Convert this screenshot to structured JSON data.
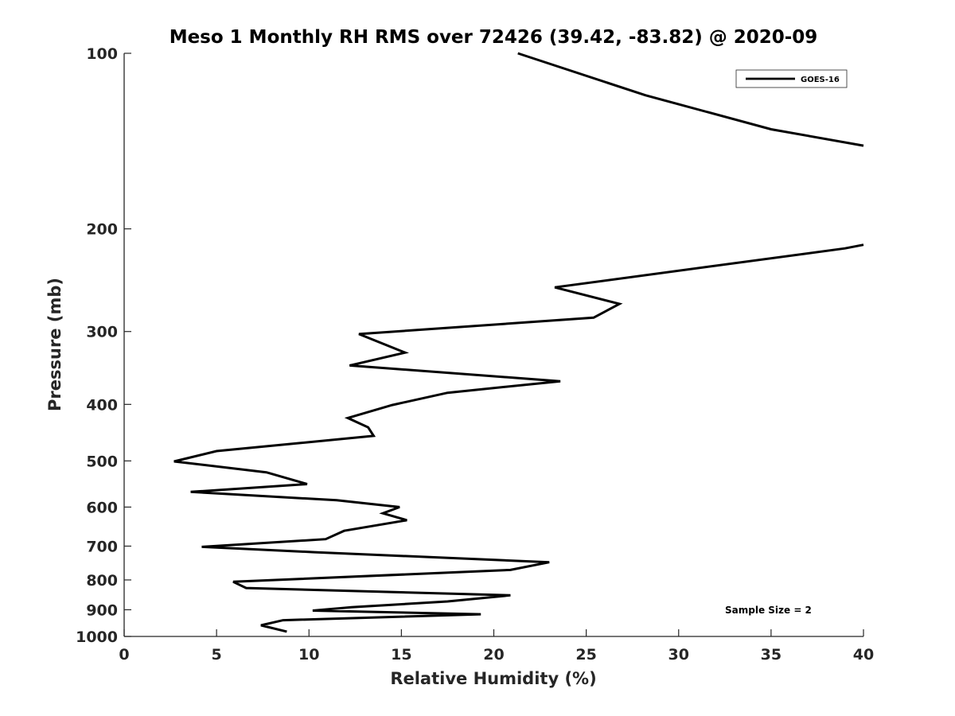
{
  "chart_data": {
    "type": "line",
    "title": "Meso 1 Monthly RH RMS over 72426 (39.42, -83.82) @ 2020-09",
    "xlabel": "Relative Humidity (%)",
    "ylabel": "Pressure (mb)",
    "xlim": [
      0,
      40
    ],
    "ylim": [
      100,
      1000
    ],
    "yscale": "log",
    "y_reversed": true,
    "grid": false,
    "legend_position": "top-right",
    "x_ticks": [
      "0",
      "5",
      "10",
      "15",
      "20",
      "25",
      "30",
      "35",
      "40"
    ],
    "y_ticks": [
      "100",
      "200",
      "300",
      "400",
      "500",
      "600",
      "700",
      "800",
      "900",
      "1000"
    ],
    "series": [
      {
        "name": "GOES-16",
        "color": "#000000",
        "segments": [
          [
            {
              "x": 21.3,
              "y": 100
            },
            {
              "x": 28.2,
              "y": 118
            },
            {
              "x": 35.0,
              "y": 135
            },
            {
              "x": 40.0,
              "y": 144
            }
          ],
          [
            {
              "x": 40.0,
              "y": 213
            },
            {
              "x": 39.0,
              "y": 216
            },
            {
              "x": 23.3,
              "y": 252
            },
            {
              "x": 26.8,
              "y": 269
            },
            {
              "x": 25.4,
              "y": 284
            },
            {
              "x": 12.7,
              "y": 303
            },
            {
              "x": 15.2,
              "y": 326
            },
            {
              "x": 12.2,
              "y": 343
            },
            {
              "x": 23.6,
              "y": 365
            },
            {
              "x": 17.5,
              "y": 382
            },
            {
              "x": 14.5,
              "y": 401
            },
            {
              "x": 12.1,
              "y": 422
            },
            {
              "x": 13.2,
              "y": 438
            },
            {
              "x": 13.5,
              "y": 453
            },
            {
              "x": 5.0,
              "y": 481
            },
            {
              "x": 2.7,
              "y": 501
            },
            {
              "x": 7.7,
              "y": 523
            },
            {
              "x": 9.9,
              "y": 548
            },
            {
              "x": 3.6,
              "y": 565
            },
            {
              "x": 11.5,
              "y": 584
            },
            {
              "x": 14.9,
              "y": 600
            },
            {
              "x": 14.0,
              "y": 615
            },
            {
              "x": 15.3,
              "y": 632
            },
            {
              "x": 11.9,
              "y": 659
            },
            {
              "x": 10.9,
              "y": 681
            },
            {
              "x": 4.2,
              "y": 702
            },
            {
              "x": 10.3,
              "y": 717
            },
            {
              "x": 23.0,
              "y": 746
            },
            {
              "x": 20.9,
              "y": 769
            },
            {
              "x": 5.9,
              "y": 806
            },
            {
              "x": 6.6,
              "y": 826
            },
            {
              "x": 20.9,
              "y": 850
            },
            {
              "x": 17.5,
              "y": 871
            },
            {
              "x": 12.3,
              "y": 891
            },
            {
              "x": 10.2,
              "y": 903
            },
            {
              "x": 19.3,
              "y": 916
            },
            {
              "x": 8.6,
              "y": 938
            },
            {
              "x": 7.4,
              "y": 957
            },
            {
              "x": 8.8,
              "y": 981
            }
          ]
        ]
      }
    ],
    "annotations": [
      "Sample Size = 2"
    ]
  }
}
